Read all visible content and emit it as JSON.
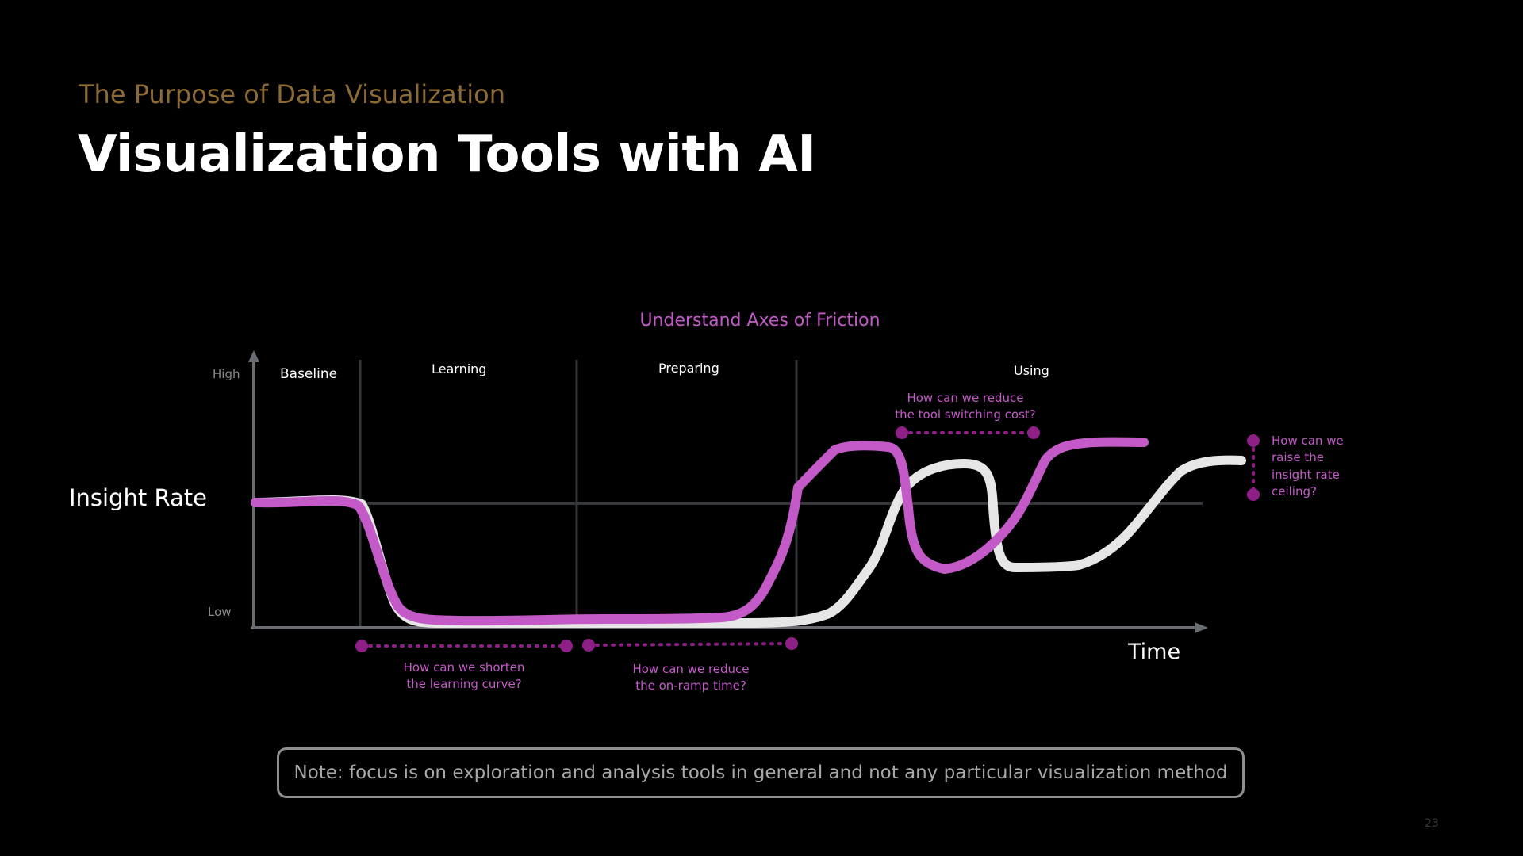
{
  "slide": {
    "subtitle": "The Purpose of Data Visualization",
    "title": "Visualization Tools with AI",
    "note": "Note: focus is on exploration and analysis tools in general and not any particular visualization method",
    "page_number": "23"
  },
  "diagram": {
    "heading": "Understand Axes of Friction",
    "y_axis_label": "Insight Rate",
    "x_axis_label": "Time",
    "y_high": "High",
    "y_low": "Low",
    "phases": [
      "Baseline",
      "Learning",
      "Preparing",
      "Using"
    ],
    "questions": {
      "learning_curve": [
        "How can we shorten",
        "the learning curve?"
      ],
      "on_ramp": [
        "How can we reduce",
        "the on-ramp time?"
      ],
      "tool_switching": [
        "How can we reduce",
        "the tool switching cost?"
      ],
      "ceiling": [
        "How can we",
        "raise the",
        "insight rate",
        "ceiling?"
      ]
    },
    "colors": {
      "accent": "#c35ac8",
      "accent_dark": "#8e1f86",
      "curve_white": "#e6e6e6",
      "axis": "#6a6d72",
      "grid": "#34363a",
      "subtitle": "#8c6a35"
    }
  }
}
